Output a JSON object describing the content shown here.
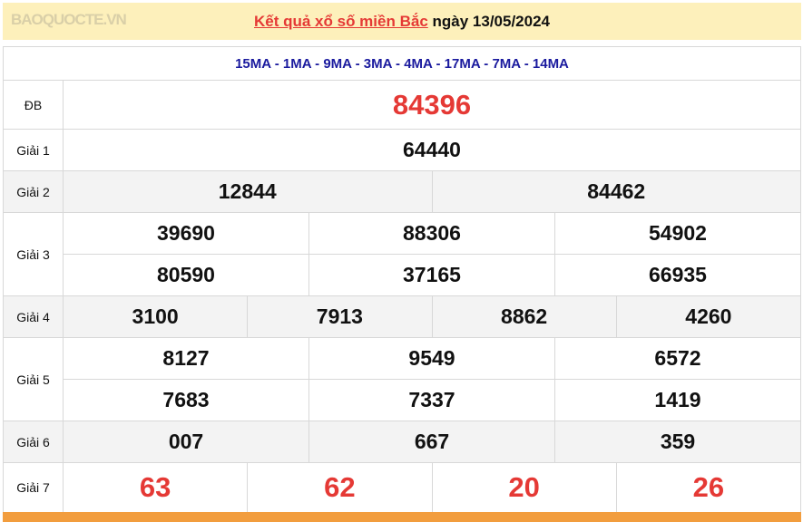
{
  "header": {
    "link": "Kết quả xổ số miền Bắc",
    "date": "ngày 13/05/2024"
  },
  "codes": "15MA - 1MA - 9MA - 3MA - 4MA - 17MA - 7MA - 14MA",
  "prizes": {
    "db": {
      "label": "ĐB",
      "values": [
        "84396"
      ]
    },
    "g1": {
      "label": "Giải 1",
      "values": [
        "64440"
      ]
    },
    "g2": {
      "label": "Giải 2",
      "values": [
        "12844",
        "84462"
      ]
    },
    "g3": {
      "label": "Giải 3",
      "values": [
        "39690",
        "88306",
        "54902",
        "80590",
        "37165",
        "66935"
      ]
    },
    "g4": {
      "label": "Giải 4",
      "values": [
        "3100",
        "7913",
        "8862",
        "4260"
      ]
    },
    "g5": {
      "label": "Giải 5",
      "values": [
        "8127",
        "9549",
        "6572",
        "7683",
        "7337",
        "1419"
      ]
    },
    "g6": {
      "label": "Giải 6",
      "values": [
        "007",
        "667",
        "359"
      ]
    },
    "g7": {
      "label": "Giải 7",
      "values": [
        "63",
        "62",
        "20",
        "26"
      ]
    }
  },
  "watermark": "BAOQUOCTE.VN",
  "colors": {
    "accent": "#e53935",
    "codes": "#1a1a9e",
    "banner": "#fdf0bb",
    "footer_bar": "#f29d3e"
  }
}
